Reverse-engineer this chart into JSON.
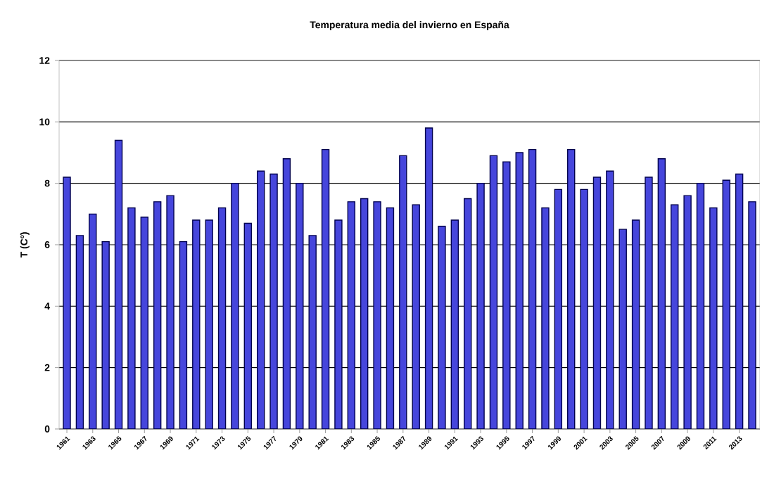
{
  "chart_data": {
    "type": "bar",
    "title": "Temperatura media del invierno en España",
    "ylabel": "T (Cº)",
    "categories": [
      "1961",
      null,
      "1963",
      null,
      "1965",
      null,
      "1967",
      null,
      "1969",
      null,
      "1971",
      null,
      "1973",
      null,
      "1975",
      null,
      "1977",
      null,
      "1979",
      null,
      "1981",
      null,
      "1983",
      null,
      "1985",
      null,
      "1987",
      null,
      "1989",
      null,
      "1991",
      null,
      "1993",
      null,
      "1995",
      null,
      "1997",
      null,
      "1999",
      null,
      "2001",
      null,
      "2003",
      null,
      "2005",
      null,
      "2007",
      null,
      "2009",
      null,
      "2011",
      null,
      "2013",
      null
    ],
    "values": [
      8.2,
      6.3,
      7.0,
      6.1,
      9.4,
      7.2,
      6.9,
      7.4,
      7.6,
      6.1,
      6.8,
      6.8,
      7.2,
      8.0,
      6.7,
      8.4,
      8.3,
      8.8,
      8.0,
      6.3,
      9.1,
      6.8,
      7.4,
      7.5,
      7.4,
      7.2,
      8.9,
      7.3,
      9.8,
      6.6,
      6.8,
      7.5,
      8.0,
      8.9,
      8.7,
      9.0,
      9.1,
      7.2,
      7.8,
      9.1,
      7.8,
      8.2,
      8.4,
      6.5,
      6.8,
      8.2,
      8.8,
      7.3,
      7.6,
      8.0,
      7.2,
      8.1,
      8.3,
      7.4
    ],
    "color": "#4646dc",
    "ylim": [
      0,
      12
    ],
    "yticks": [
      0,
      2,
      4,
      6,
      8,
      10,
      12
    ],
    "grid": "y"
  }
}
